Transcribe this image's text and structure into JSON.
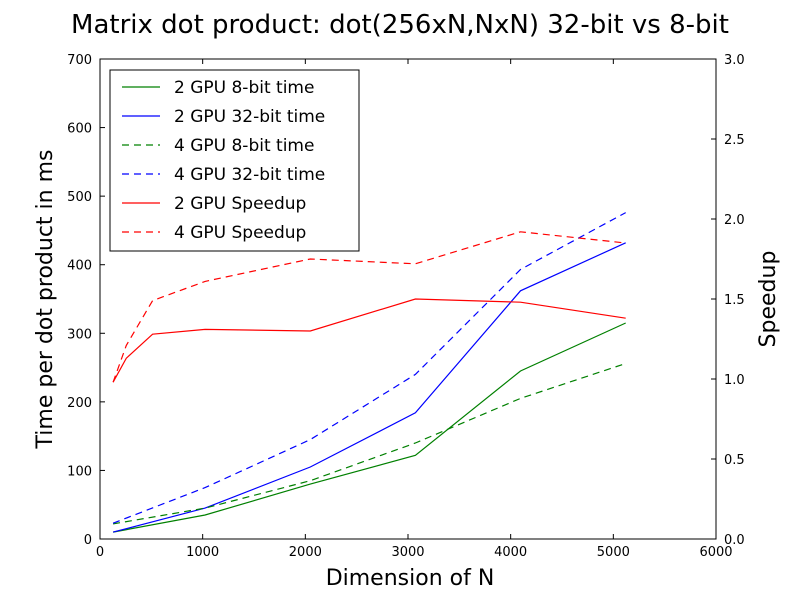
{
  "chart_data": {
    "type": "line",
    "title": "Matrix dot product: dot(256xN,NxN) 32-bit vs 8-bit",
    "xlabel": "Dimension of N",
    "ylabel": "Time per dot product in ms",
    "y2label": "Speedup",
    "xlim": [
      0,
      6000
    ],
    "ylim": [
      0,
      700
    ],
    "y2lim": [
      0,
      3.0
    ],
    "xticks": [
      "0",
      "1000",
      "2000",
      "3000",
      "4000",
      "5000",
      "6000"
    ],
    "yticks": [
      "0",
      "100",
      "200",
      "300",
      "400",
      "500",
      "600",
      "700"
    ],
    "y2ticks": [
      "0.0",
      "0.5",
      "1.0",
      "1.5",
      "2.0",
      "2.5",
      "3.0"
    ],
    "grid": false,
    "legend_position": "top-left",
    "series": [
      {
        "name": "2 GPU 8-bit time",
        "axis": "left",
        "color": "#008000",
        "dash": "solid",
        "x": [
          128,
          1024,
          2048,
          3072,
          4096,
          5120
        ],
        "y": [
          10,
          35,
          80,
          122,
          245,
          315
        ]
      },
      {
        "name": "2 GPU 32-bit time",
        "axis": "left",
        "color": "#0000ff",
        "dash": "solid",
        "x": [
          128,
          1024,
          2048,
          3072,
          4096,
          5120
        ],
        "y": [
          10,
          45,
          105,
          184,
          362,
          432
        ]
      },
      {
        "name": "4 GPU 8-bit time",
        "axis": "left",
        "color": "#008000",
        "dash": "dashed",
        "x": [
          128,
          1024,
          2048,
          3072,
          4096,
          5120
        ],
        "y": [
          22,
          45,
          85,
          140,
          205,
          256
        ]
      },
      {
        "name": "4 GPU 32-bit time",
        "axis": "left",
        "color": "#0000ff",
        "dash": "dashed",
        "x": [
          128,
          1024,
          2048,
          3072,
          4096,
          5120
        ],
        "y": [
          23,
          75,
          145,
          240,
          393,
          476
        ]
      },
      {
        "name": "2 GPU Speedup",
        "axis": "right",
        "color": "#ff0000",
        "dash": "solid",
        "x": [
          128,
          256,
          512,
          1024,
          2048,
          3072,
          4096,
          5120
        ],
        "y": [
          0.98,
          1.13,
          1.28,
          1.31,
          1.3,
          1.5,
          1.48,
          1.38
        ]
      },
      {
        "name": "4 GPU Speedup",
        "axis": "right",
        "color": "#ff0000",
        "dash": "dashed",
        "x": [
          128,
          256,
          512,
          1024,
          2048,
          3072,
          4096,
          5120
        ],
        "y": [
          0.98,
          1.21,
          1.49,
          1.61,
          1.75,
          1.72,
          1.92,
          1.85
        ]
      }
    ]
  }
}
